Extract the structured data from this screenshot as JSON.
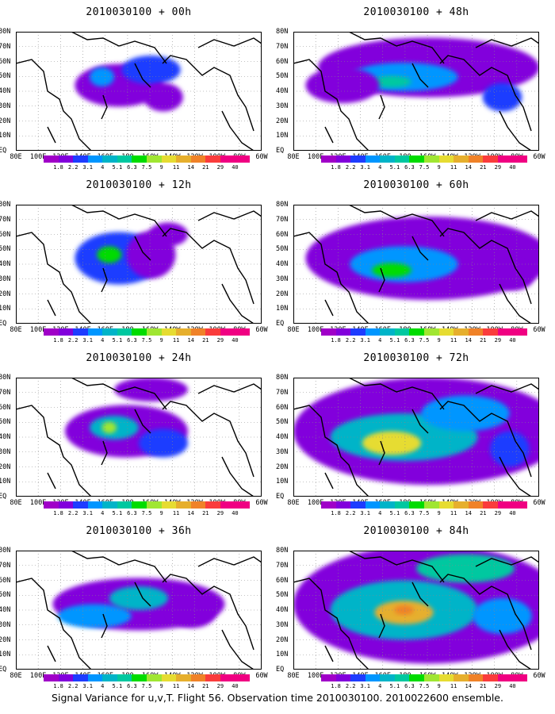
{
  "caption": "Signal Variance for u,v,T. Flight 56. Observation time 2010030100. 2010022600 ensemble.",
  "lat_labels": [
    "80N",
    "70N",
    "60N",
    "50N",
    "40N",
    "30N",
    "20N",
    "10N",
    "EQ"
  ],
  "lon_labels": [
    "80E",
    "100E",
    "120E",
    "140E",
    "160E",
    "180",
    "160W",
    "140W",
    "120W",
    "100W",
    "80W",
    "60W"
  ],
  "legend": {
    "labels": [
      "1.8",
      "2.2",
      "3.1",
      "4",
      "5.1",
      "6.3",
      "7.5",
      "9",
      "11",
      "14",
      "21",
      "29",
      "40"
    ],
    "colors": [
      "#a000c8",
      "#8200dc",
      "#1e3cff",
      "#0096ff",
      "#00b4c8",
      "#00c8a0",
      "#00dc00",
      "#a0e632",
      "#e6dc32",
      "#e6af2d",
      "#f08228",
      "#fa3c3c",
      "#f00082"
    ]
  },
  "panels": [
    {
      "title": "2010030100 + 00h",
      "blobs": [
        [
          0.42,
          0.45,
          0.18,
          0.18,
          1
        ],
        [
          0.55,
          0.32,
          0.12,
          0.12,
          2
        ],
        [
          0.35,
          0.38,
          0.05,
          0.08,
          3
        ],
        [
          0.6,
          0.55,
          0.08,
          0.12,
          1
        ]
      ]
    },
    {
      "title": "2010030100 + 48h",
      "blobs": [
        [
          0.55,
          0.3,
          0.45,
          0.25,
          1
        ],
        [
          0.45,
          0.38,
          0.22,
          0.12,
          3
        ],
        [
          0.4,
          0.42,
          0.08,
          0.05,
          5
        ],
        [
          0.2,
          0.45,
          0.15,
          0.15,
          1
        ],
        [
          0.85,
          0.55,
          0.08,
          0.12,
          2
        ]
      ]
    },
    {
      "title": "2010030100 + 12h",
      "blobs": [
        [
          0.42,
          0.45,
          0.18,
          0.22,
          2
        ],
        [
          0.38,
          0.42,
          0.05,
          0.07,
          6
        ],
        [
          0.55,
          0.42,
          0.1,
          0.2,
          1
        ],
        [
          0.62,
          0.25,
          0.08,
          0.1,
          1
        ]
      ]
    },
    {
      "title": "2010030100 + 60h",
      "blobs": [
        [
          0.55,
          0.45,
          0.5,
          0.35,
          1
        ],
        [
          0.45,
          0.5,
          0.22,
          0.15,
          3
        ],
        [
          0.4,
          0.55,
          0.08,
          0.06,
          6
        ],
        [
          0.9,
          0.6,
          0.08,
          0.12,
          1
        ]
      ]
    },
    {
      "title": "2010030100 + 24h",
      "blobs": [
        [
          0.45,
          0.45,
          0.25,
          0.22,
          1
        ],
        [
          0.4,
          0.42,
          0.1,
          0.1,
          4
        ],
        [
          0.38,
          0.42,
          0.03,
          0.05,
          7
        ],
        [
          0.6,
          0.55,
          0.1,
          0.12,
          2
        ],
        [
          0.55,
          0.1,
          0.15,
          0.1,
          1
        ]
      ]
    },
    {
      "title": "2010030100 + 72h",
      "blobs": [
        [
          0.55,
          0.45,
          0.55,
          0.45,
          1
        ],
        [
          0.45,
          0.5,
          0.3,
          0.2,
          4
        ],
        [
          0.4,
          0.55,
          0.12,
          0.1,
          8
        ],
        [
          0.7,
          0.3,
          0.18,
          0.15,
          3
        ],
        [
          0.88,
          0.6,
          0.08,
          0.15,
          2
        ]
      ]
    },
    {
      "title": "2010030100 + 36h",
      "blobs": [
        [
          0.5,
          0.45,
          0.35,
          0.22,
          1
        ],
        [
          0.32,
          0.55,
          0.15,
          0.1,
          3
        ],
        [
          0.5,
          0.4,
          0.12,
          0.1,
          4
        ],
        [
          0.72,
          0.5,
          0.1,
          0.15,
          1
        ]
      ]
    },
    {
      "title": "2010030100 + 84h",
      "blobs": [
        [
          0.55,
          0.45,
          0.55,
          0.5,
          1
        ],
        [
          0.45,
          0.5,
          0.3,
          0.25,
          4
        ],
        [
          0.45,
          0.52,
          0.12,
          0.1,
          9
        ],
        [
          0.45,
          0.5,
          0.04,
          0.04,
          10
        ],
        [
          0.7,
          0.15,
          0.2,
          0.12,
          5
        ],
        [
          0.85,
          0.55,
          0.12,
          0.15,
          3
        ]
      ]
    }
  ]
}
